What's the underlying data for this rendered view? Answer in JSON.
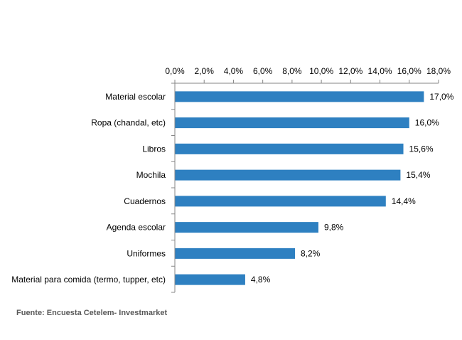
{
  "chart_data": {
    "type": "bar",
    "orientation": "horizontal",
    "categories": [
      "Material escolar",
      "Ropa (chandal, etc)",
      "Libros",
      "Mochila",
      "Cuadernos",
      "Agenda escolar",
      "Uniformes",
      "Material para comida (termo, tupper, etc)"
    ],
    "values": [
      17.0,
      16.0,
      15.6,
      15.4,
      14.4,
      9.8,
      8.2,
      4.8
    ],
    "value_labels": [
      "17,0%",
      "16,0%",
      "15,6%",
      "15,4%",
      "14,4%",
      "9,8%",
      "8,2%",
      "4,8%"
    ],
    "xlim": [
      0,
      18
    ],
    "x_ticks": [
      0,
      2,
      4,
      6,
      8,
      10,
      12,
      14,
      16,
      18
    ],
    "x_tick_labels": [
      "0,0%",
      "2,0%",
      "4,0%",
      "6,0%",
      "8,0%",
      "10,0%",
      "12,0%",
      "14,0%",
      "16,0%",
      "18,0%"
    ],
    "axis_position": "top",
    "grid": false,
    "title": "",
    "xlabel": "",
    "ylabel": "",
    "bar_color": "#2e80c1"
  },
  "source": {
    "text": "Fuente: Encuesta Cetelem- Investmarket"
  }
}
